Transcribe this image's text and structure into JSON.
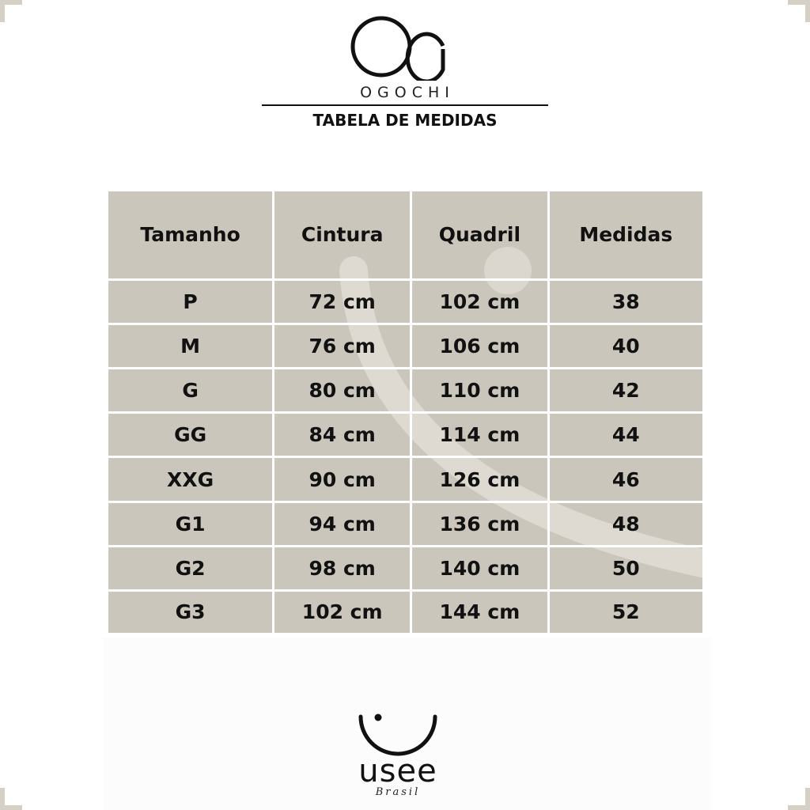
{
  "brand": {
    "logo_mark": "Og",
    "name": "OGOCHI"
  },
  "title": "TABELA DE MEDIDAS",
  "table": {
    "headers": [
      "Tamanho",
      "Cintura",
      "Quadril",
      "Medidas"
    ],
    "rows": [
      [
        "P",
        "72 cm",
        "102 cm",
        "38"
      ],
      [
        "M",
        "76 cm",
        "106 cm",
        "40"
      ],
      [
        "G",
        "80 cm",
        "110 cm",
        "42"
      ],
      [
        "GG",
        "84 cm",
        "114 cm",
        "44"
      ],
      [
        "XXG",
        "90 cm",
        "126 cm",
        "46"
      ],
      [
        "G1",
        "94 cm",
        "136 cm",
        "48"
      ],
      [
        "G2",
        "98 cm",
        "140 cm",
        "50"
      ],
      [
        "G3",
        "102 cm",
        "144 cm",
        "52"
      ]
    ]
  },
  "footer_logo": {
    "name": "usee",
    "subtitle": "Brasil"
  },
  "colors": {
    "table_bg": "#cbc6bc",
    "corner": "#d6cfc6",
    "text": "#111111"
  }
}
